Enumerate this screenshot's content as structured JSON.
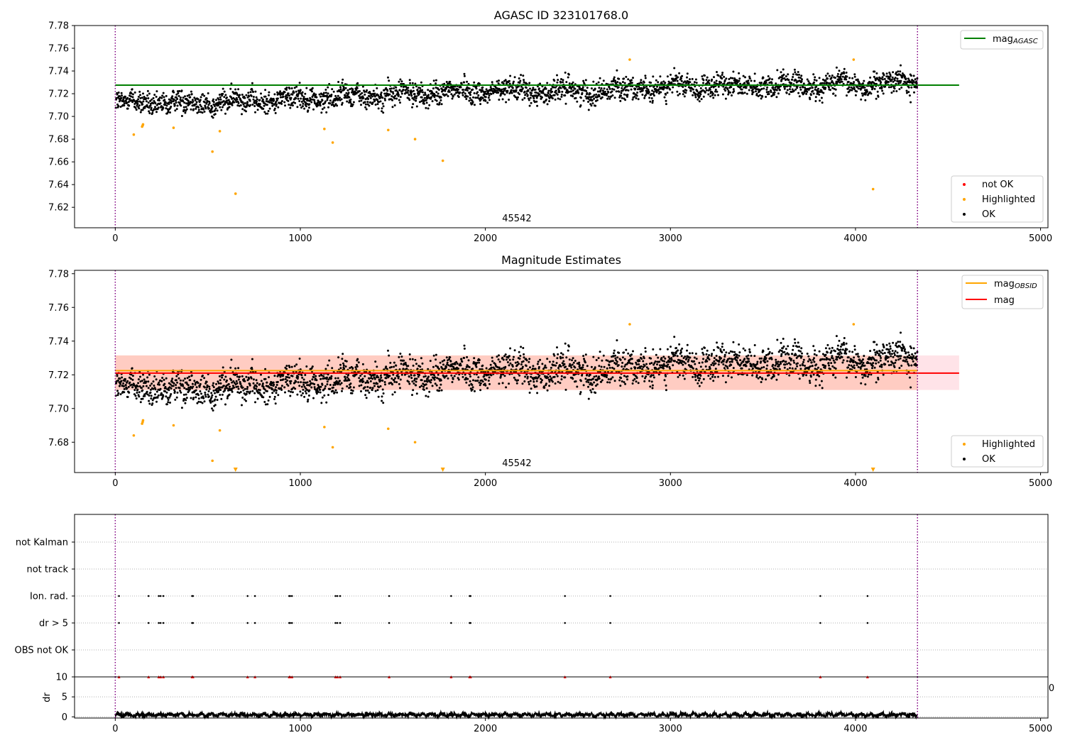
{
  "colors": {
    "ok": "#000000",
    "highlighted": "#ffa500",
    "not_ok": "#ff0000",
    "mag_agasc": "#008000",
    "mag": "#ff0000",
    "mag_obsid": "#ffa500",
    "limits": "#800080",
    "band_outer": "#ffc0cb",
    "band_inner": "#ffa07a"
  },
  "chart_data": [
    {
      "type": "scatter",
      "title": "AGASC ID 323101768.0",
      "xlim": [
        -220,
        5040
      ],
      "ylim": [
        7.602,
        7.78
      ],
      "x_ticks": [
        "0",
        "1000",
        "2000",
        "3000",
        "4000",
        "5000"
      ],
      "y_ticks": [
        "7.62",
        "7.64",
        "7.66",
        "7.68",
        "7.70",
        "7.72",
        "7.74",
        "7.76",
        "7.78"
      ],
      "obsid_label": "45542",
      "obs_bounds": [
        0,
        4335
      ],
      "mag_agasc_line": {
        "value": 7.7275,
        "x_end": 4560
      },
      "ok_trend": [
        [
          0,
          7.712
        ],
        [
          500,
          7.712
        ],
        [
          1000,
          7.716
        ],
        [
          1500,
          7.719
        ],
        [
          2000,
          7.723
        ],
        [
          2500,
          7.722
        ],
        [
          3000,
          7.726
        ],
        [
          3500,
          7.727
        ],
        [
          4000,
          7.728
        ],
        [
          4335,
          7.73
        ]
      ],
      "ok_scatter_sd": 0.007,
      "highlighted": [
        [
          100,
          7.684
        ],
        [
          145,
          7.691
        ],
        [
          148,
          7.692
        ],
        [
          150,
          7.693
        ],
        [
          315,
          7.69
        ],
        [
          525,
          7.669
        ],
        [
          565,
          7.687
        ],
        [
          650,
          7.632
        ],
        [
          1130,
          7.689
        ],
        [
          1175,
          7.677
        ],
        [
          1475,
          7.688
        ],
        [
          1620,
          7.68
        ],
        [
          1770,
          7.661
        ],
        [
          2780,
          7.75
        ],
        [
          3990,
          7.75
        ],
        [
          4095,
          7.636
        ]
      ],
      "legend": [
        {
          "label": "mag",
          "sub": "AGASC",
          "kind": "line",
          "color_key": "mag_agasc"
        }
      ],
      "legend_scatter": [
        {
          "label": "not OK",
          "color_key": "not_ok"
        },
        {
          "label": "Highlighted",
          "color_key": "highlighted"
        },
        {
          "label": "OK",
          "color_key": "ok"
        }
      ]
    },
    {
      "type": "scatter",
      "title": "Magnitude Estimates",
      "xlim": [
        -220,
        5040
      ],
      "ylim": [
        7.662,
        7.782
      ],
      "x_ticks": [
        "0",
        "1000",
        "2000",
        "3000",
        "4000",
        "5000"
      ],
      "y_ticks": [
        "7.68",
        "7.70",
        "7.72",
        "7.74",
        "7.76",
        "7.78"
      ],
      "obsid_label": "45542",
      "obs_bounds": [
        0,
        4335
      ],
      "mag_line": {
        "value": 7.721,
        "x_end": 4560
      },
      "mag_obsid_line": {
        "value": 7.7225,
        "x_end": 4335
      },
      "band": {
        "low": 7.711,
        "high": 7.7315
      },
      "highlighted": [
        [
          100,
          7.684
        ],
        [
          145,
          7.691
        ],
        [
          148,
          7.692
        ],
        [
          150,
          7.693
        ],
        [
          315,
          7.69
        ],
        [
          525,
          7.669
        ],
        [
          565,
          7.687
        ],
        [
          1130,
          7.689
        ],
        [
          1175,
          7.677
        ],
        [
          1475,
          7.688
        ],
        [
          1620,
          7.68
        ],
        [
          2780,
          7.75
        ],
        [
          3990,
          7.75
        ]
      ],
      "off_scale_markers": [
        650,
        1770,
        4095
      ],
      "legend": [
        {
          "label": "mag",
          "sub": "OBSID",
          "kind": "line",
          "color_key": "mag_obsid"
        },
        {
          "label": "mag",
          "sub": "",
          "kind": "line",
          "color_key": "mag"
        }
      ],
      "legend_scatter": [
        {
          "label": "Highlighted",
          "color_key": "highlighted"
        },
        {
          "label": "OK",
          "color_key": "ok"
        }
      ]
    },
    {
      "type": "scatter",
      "title": "",
      "xlim": [
        -220,
        5040
      ],
      "categories": [
        "not Kalman",
        "not track",
        "Ion. rad.",
        "dr > 5",
        "OBS not OK"
      ],
      "obs_bounds": [
        0,
        4335
      ],
      "flag_times": [
        20,
        180,
        235,
        245,
        260,
        415,
        420,
        715,
        755,
        940,
        945,
        955,
        1190,
        1200,
        1215,
        1480,
        1815,
        1915,
        1920,
        2430,
        2675,
        3810,
        4065
      ],
      "flag_rows": [
        "Ion. rad.",
        "dr > 5"
      ],
      "edge_tick_label": "0"
    },
    {
      "type": "line",
      "ylabel": "dr",
      "xlim": [
        -220,
        5040
      ],
      "ylim": [
        -0.3,
        10
      ],
      "x_ticks": [
        "0",
        "1000",
        "2000",
        "3000",
        "4000",
        "5000"
      ],
      "y_ticks": [
        "0",
        "5",
        "10"
      ],
      "dr_typical": 0.5,
      "flag_marker_value": 10
    }
  ]
}
